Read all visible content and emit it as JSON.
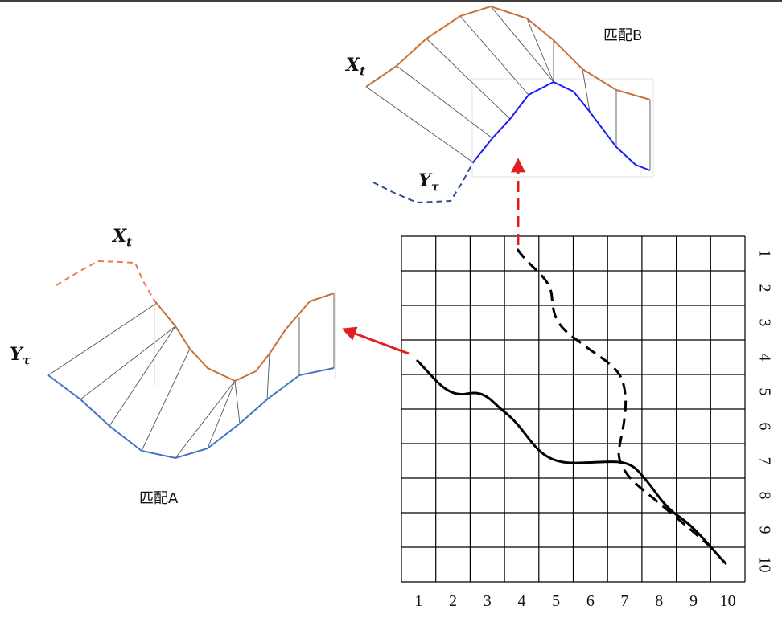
{
  "grid": {
    "rows": 10,
    "cols": 10,
    "x_ticks": [
      "1",
      "2",
      "3",
      "4",
      "5",
      "6",
      "7",
      "8",
      "9",
      "10"
    ],
    "y_ticks": [
      "1",
      "2",
      "3",
      "4",
      "5",
      "6",
      "7",
      "8",
      "9",
      "10"
    ]
  },
  "match_a": {
    "title": "匹配A",
    "x_label": "X",
    "x_sub": "t",
    "y_label": "Y",
    "y_sub": "τ"
  },
  "match_b": {
    "title": "匹配B",
    "x_label": "X",
    "x_sub": "t",
    "y_label": "Y",
    "y_sub": "τ"
  },
  "colors": {
    "x_series": "#c87137",
    "y_series_a": "#4472c4",
    "y_series_b": "#1a1aff",
    "x_dashed": "#f07850",
    "y_dashed": "#2a4f8f",
    "arrow": "#e02020",
    "connector": "#555555",
    "path": "#000000"
  }
}
